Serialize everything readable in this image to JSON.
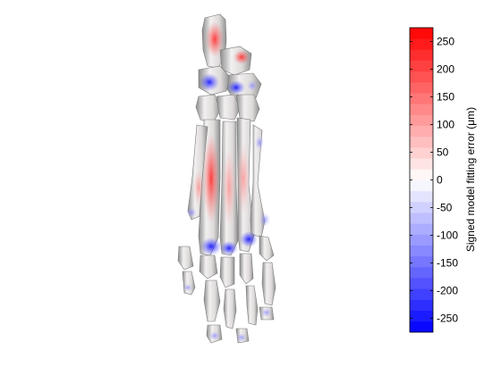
{
  "chart_data": {
    "type": "heatmap",
    "subject": "3D foot skeleton surface rendered with signed error color map",
    "colorbar": {
      "label": "Signed model fitting error (μm)",
      "range": [
        -275,
        275
      ],
      "ticks": [
        -250,
        -200,
        -150,
        -100,
        -50,
        0,
        50,
        100,
        150,
        200,
        250
      ],
      "tick_labels": [
        "-250",
        "-200",
        "-150",
        "-100",
        "-50",
        "0",
        "50",
        "100",
        "150",
        "200",
        "250"
      ],
      "colormap": "blue-white-red",
      "min_color": "#0000ff",
      "mid_color": "#ffffff",
      "max_color": "#ff0000",
      "steps": 28
    },
    "colors": {
      "bone": "#e8e3e3",
      "bone_shade": "#9a9a9a",
      "outline": "#000000"
    }
  }
}
